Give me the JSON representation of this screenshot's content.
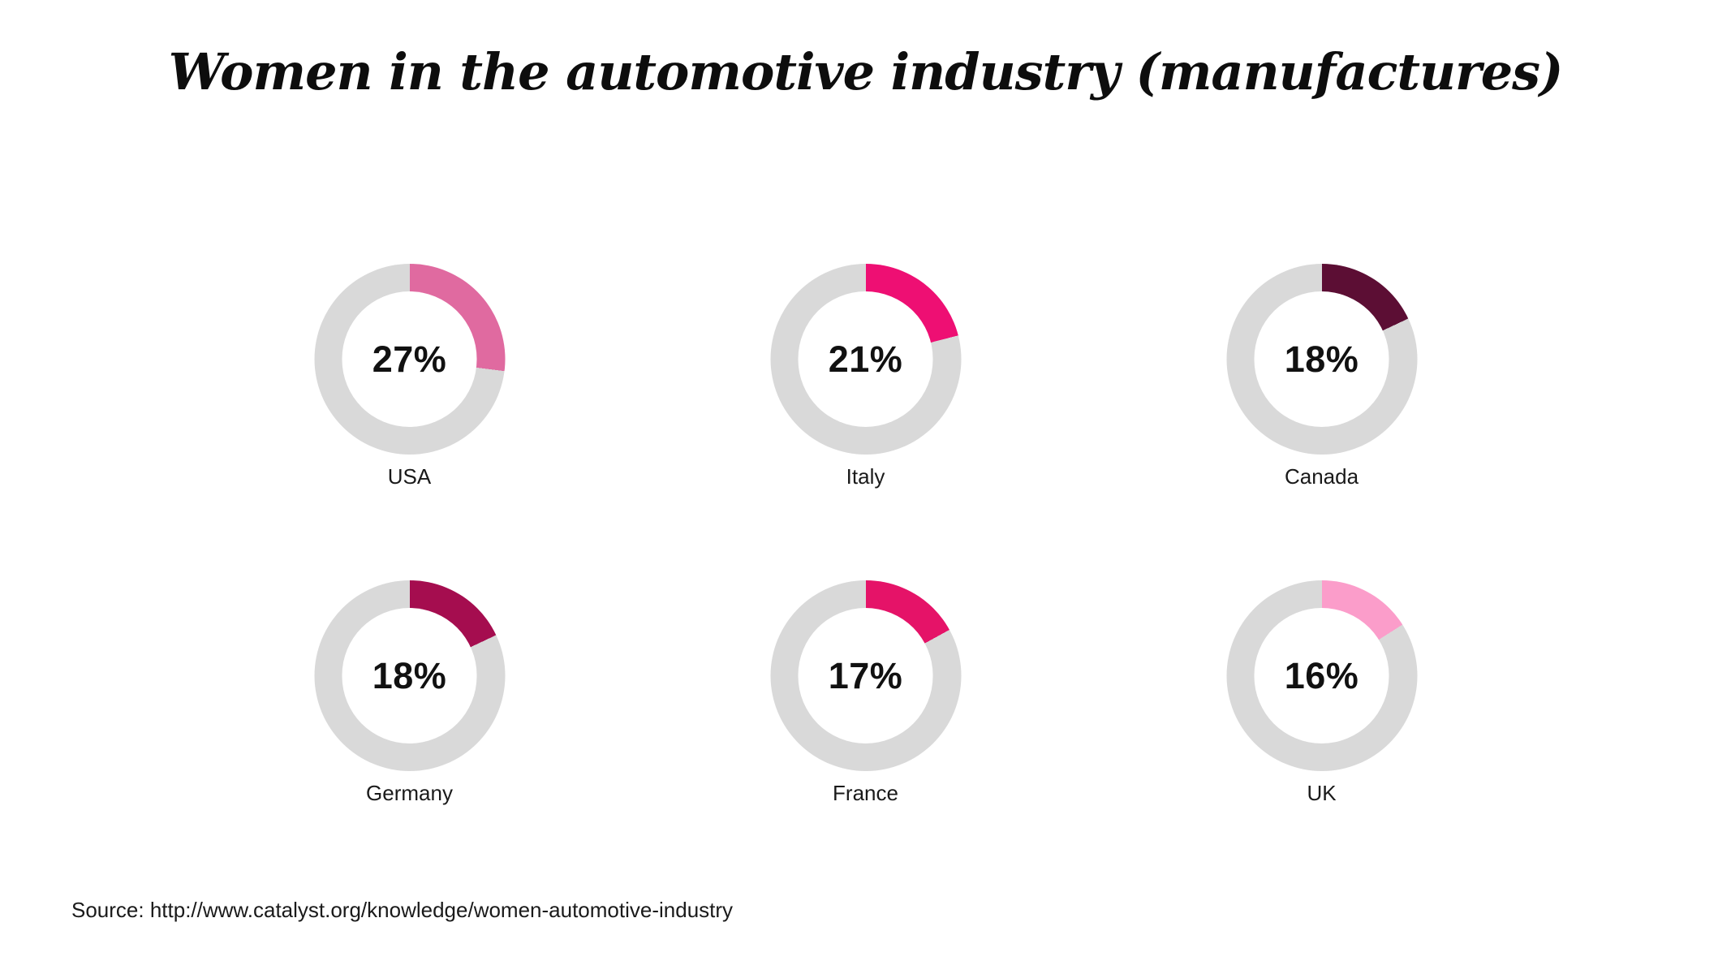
{
  "title": "Women in the automotive industry (manufactures)",
  "source_line": "Source: http://www.catalyst.org/knowledge/women-automotive-industry",
  "chart_data": {
    "type": "pie",
    "subtype": "donut-small-multiples",
    "title": "Women in the automotive industry (manufactures)",
    "unit": "%",
    "categories": [
      "USA",
      "Italy",
      "Canada",
      "Germany",
      "France",
      "UK"
    ],
    "values": [
      27,
      21,
      18,
      18,
      17,
      16
    ],
    "value_labels": [
      "27%",
      "21%",
      "18%",
      "18%",
      "17%",
      "16%"
    ],
    "slice_colors": [
      "#e06aa0",
      "#ee0f73",
      "#5c0e34",
      "#a50d4f",
      "#e51368",
      "#fb9dca"
    ],
    "track_color": "#d9d9d9",
    "start_angle_deg": 0,
    "direction": "clockwise",
    "legend": "none",
    "grid": "off",
    "layout": "3 columns x 2 rows",
    "source": "http://www.catalyst.org/knowledge/women-automotive-industry"
  }
}
